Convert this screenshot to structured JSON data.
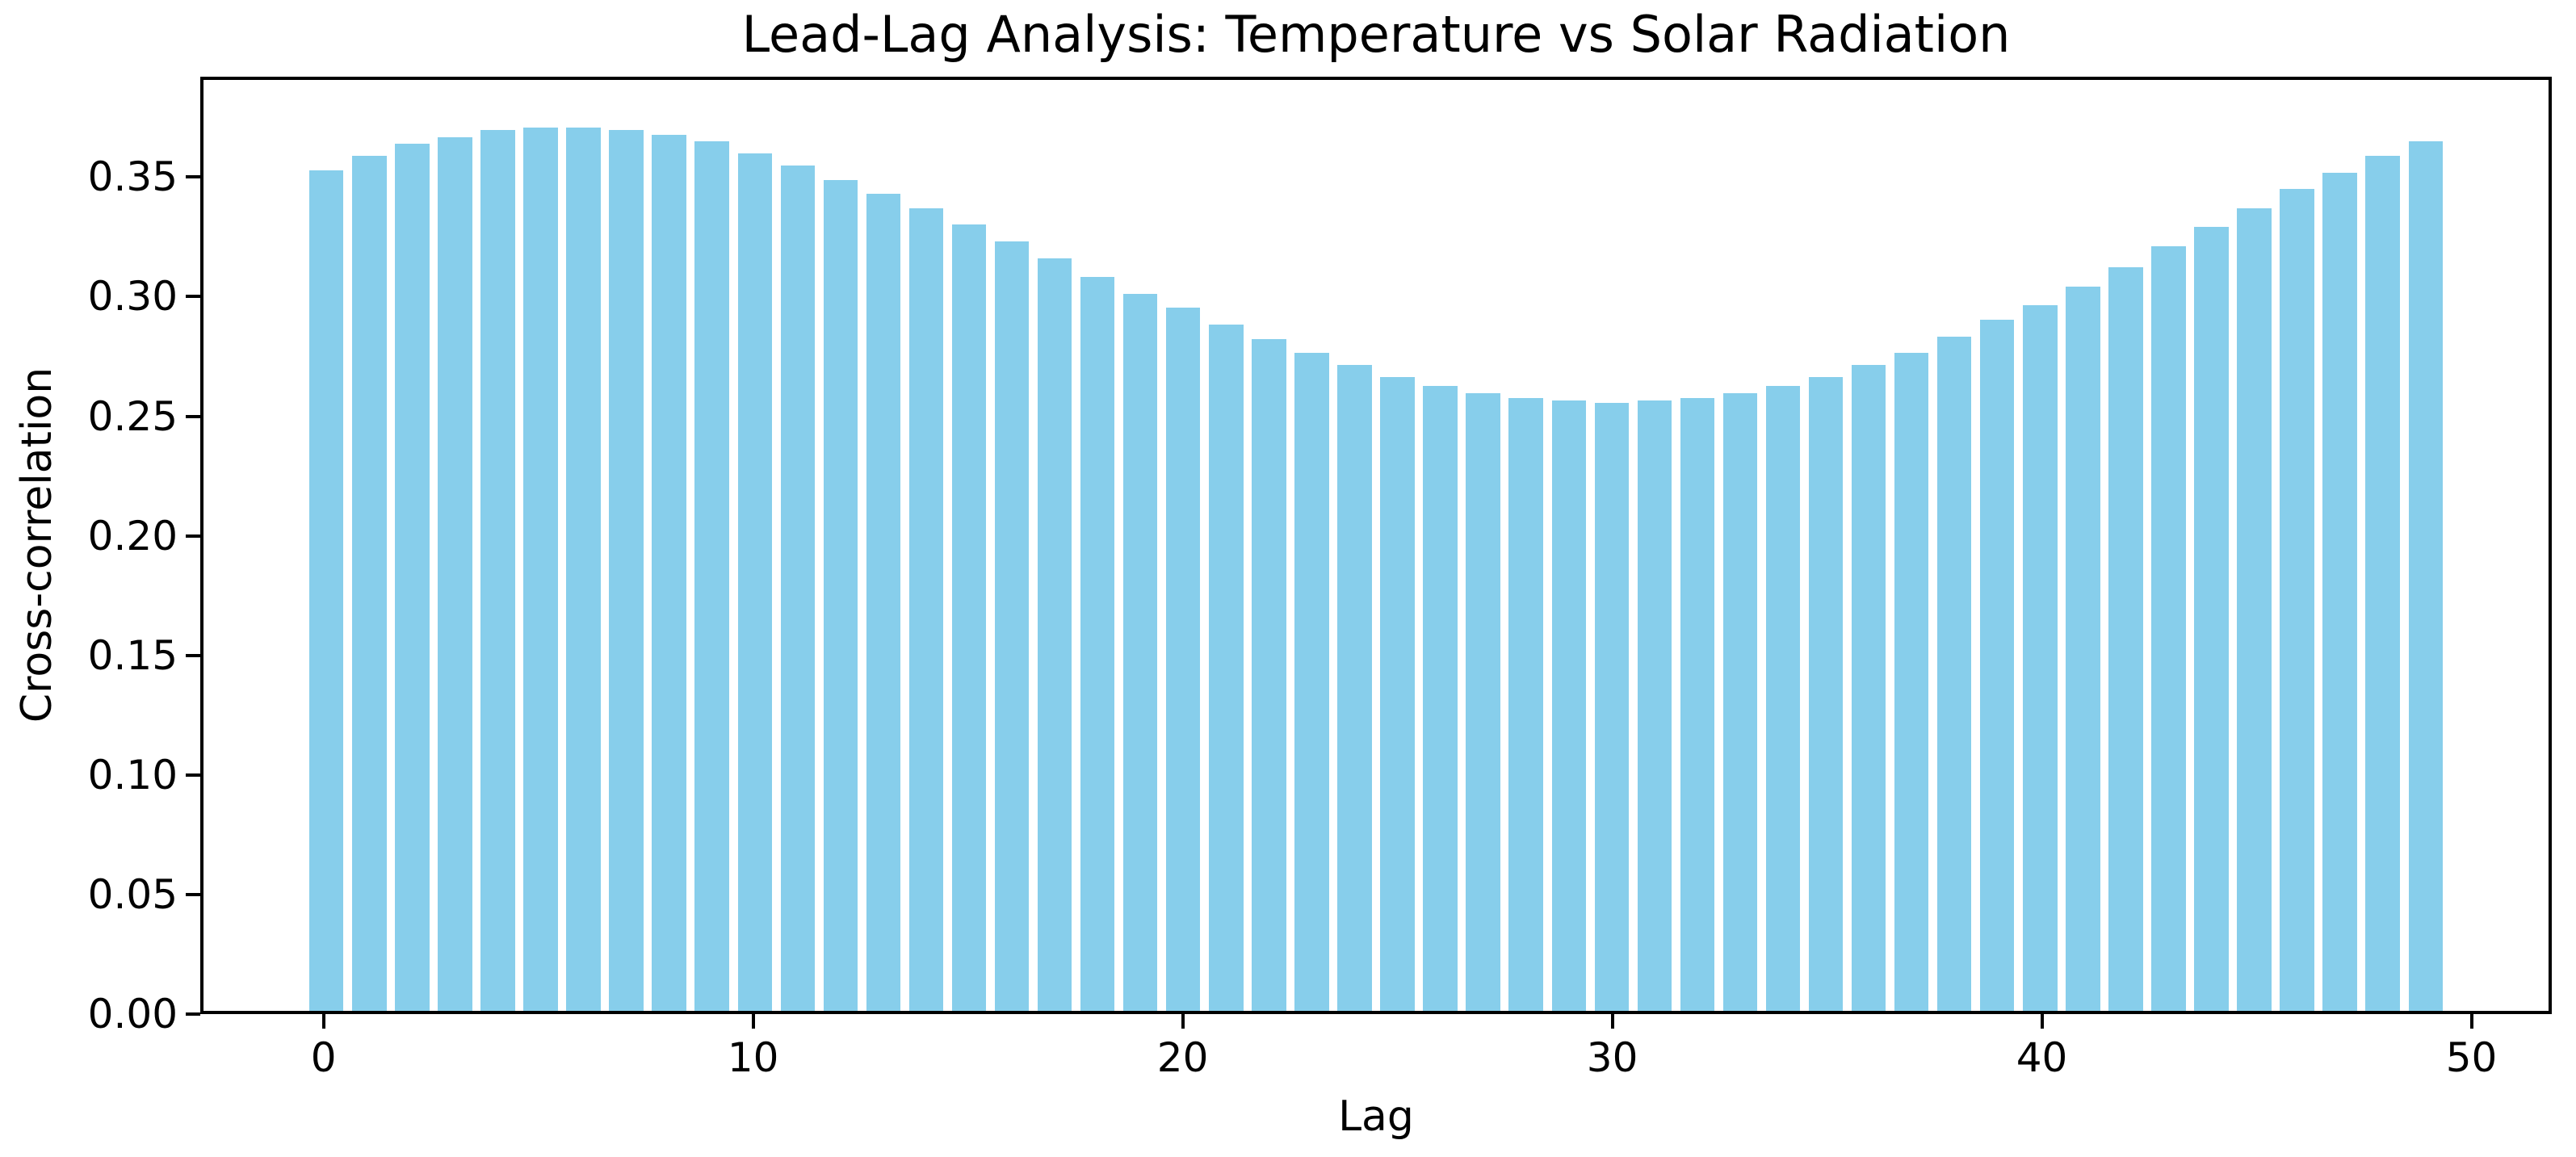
{
  "figure": {
    "background": "#ffffff"
  },
  "chart_data": {
    "type": "bar",
    "title": "Lead-Lag Analysis: Temperature vs Solar Radiation",
    "xlabel": "Lag",
    "ylabel": "Cross-correlation",
    "x": [
      0,
      1,
      2,
      3,
      4,
      5,
      6,
      7,
      8,
      9,
      10,
      11,
      12,
      13,
      14,
      15,
      16,
      17,
      18,
      19,
      20,
      21,
      22,
      23,
      24,
      25,
      26,
      27,
      28,
      29,
      30,
      31,
      32,
      33,
      34,
      35,
      36,
      37,
      38,
      39,
      40,
      41,
      42,
      43,
      44,
      45,
      46,
      47,
      48,
      49
    ],
    "values": [
      0.354,
      0.36,
      0.365,
      0.368,
      0.371,
      0.372,
      0.372,
      0.371,
      0.369,
      0.366,
      0.361,
      0.356,
      0.35,
      0.344,
      0.338,
      0.331,
      0.324,
      0.317,
      0.309,
      0.302,
      0.296,
      0.289,
      0.283,
      0.277,
      0.272,
      0.267,
      0.263,
      0.26,
      0.258,
      0.257,
      0.256,
      0.257,
      0.258,
      0.26,
      0.263,
      0.267,
      0.272,
      0.277,
      0.284,
      0.291,
      0.297,
      0.305,
      0.313,
      0.322,
      0.33,
      0.338,
      0.346,
      0.353,
      0.36,
      0.366
    ],
    "bar_color": "#87CEEB",
    "bar_width": 0.8,
    "xlim": [
      -2.87,
      51.87
    ],
    "ylim": [
      0,
      0.392
    ],
    "xticks": [
      0,
      10,
      20,
      30,
      40,
      50
    ],
    "xtick_labels": [
      "0",
      "10",
      "20",
      "30",
      "40",
      "50"
    ],
    "yticks": [
      0,
      0.05,
      0.1,
      0.15,
      0.2,
      0.25,
      0.3,
      0.35
    ],
    "ytick_labels": [
      "0.00",
      "0.05",
      "0.10",
      "0.15",
      "0.20",
      "0.25",
      "0.30",
      "0.35"
    ],
    "grid": false,
    "legend_position": "none",
    "spine_color": "#000000",
    "tick_color": "#000000",
    "text_color": "#000000"
  }
}
